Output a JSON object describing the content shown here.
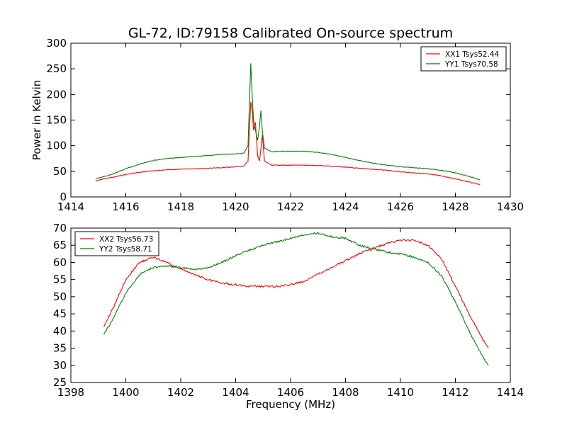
{
  "title": "GL-72, ID:79158 Calibrated On-source spectrum",
  "chart_data": [
    {
      "type": "line",
      "ylabel": "Power in Kelvin",
      "xlabel": "",
      "xlim": [
        1414,
        1430
      ],
      "ylim": [
        0,
        300
      ],
      "xticks": [
        1414,
        1416,
        1418,
        1420,
        1422,
        1424,
        1426,
        1428,
        1430
      ],
      "yticks": [
        0,
        50,
        100,
        150,
        200,
        250,
        300
      ],
      "legend_position": "upper right",
      "series": [
        {
          "name": "XX1 Tsys52.44",
          "color": "#ff0000",
          "x": [
            1414.9,
            1415.5,
            1416.0,
            1416.5,
            1417.0,
            1417.5,
            1418.0,
            1418.5,
            1419.0,
            1419.5,
            1420.0,
            1420.3,
            1420.45,
            1420.55,
            1420.6,
            1420.65,
            1420.72,
            1420.8,
            1420.87,
            1420.92,
            1420.97,
            1421.05,
            1421.3,
            1421.5,
            1422.0,
            1422.5,
            1423.0,
            1423.5,
            1424.0,
            1424.5,
            1425.0,
            1425.5,
            1426.0,
            1426.5,
            1427.0,
            1427.5,
            1428.0,
            1428.5,
            1428.9
          ],
          "y": [
            32,
            38,
            44,
            48,
            51,
            53,
            54,
            55,
            56,
            57,
            59,
            60,
            70,
            185,
            170,
            130,
            145,
            80,
            70,
            95,
            120,
            70,
            62,
            62,
            62,
            62,
            61,
            60,
            58,
            56,
            54,
            52,
            49,
            47,
            45,
            41,
            35,
            29,
            24
          ]
        },
        {
          "name": "YY1 Tsys70.58",
          "color": "#008000",
          "x": [
            1414.9,
            1415.5,
            1416.0,
            1416.5,
            1417.0,
            1417.5,
            1418.0,
            1418.5,
            1419.0,
            1419.5,
            1420.0,
            1420.3,
            1420.45,
            1420.5,
            1420.55,
            1420.6,
            1420.65,
            1420.72,
            1420.8,
            1420.87,
            1420.92,
            1420.97,
            1421.05,
            1421.3,
            1421.5,
            1422.0,
            1422.5,
            1423.0,
            1423.5,
            1424.0,
            1424.5,
            1425.0,
            1425.5,
            1426.0,
            1426.5,
            1427.0,
            1427.5,
            1428.0,
            1428.5,
            1428.9
          ],
          "y": [
            35,
            44,
            55,
            64,
            71,
            75,
            77,
            79,
            81,
            83,
            84,
            85,
            100,
            180,
            260,
            200,
            150,
            130,
            110,
            140,
            168,
            130,
            95,
            88,
            89,
            89,
            89,
            87,
            83,
            77,
            71,
            66,
            62,
            59,
            57,
            55,
            52,
            47,
            40,
            33
          ]
        }
      ]
    },
    {
      "type": "line",
      "ylabel": "",
      "xlabel": "Frequency (MHz)",
      "xlim": [
        1398,
        1414
      ],
      "ylim": [
        25,
        70
      ],
      "xticks": [
        1398,
        1400,
        1402,
        1404,
        1406,
        1408,
        1410,
        1412,
        1414
      ],
      "yticks": [
        25,
        30,
        35,
        40,
        45,
        50,
        55,
        60,
        65,
        70
      ],
      "legend_position": "upper left",
      "series": [
        {
          "name": "XX2 Tsys56.73",
          "color": "#ff0000",
          "x": [
            1399.2,
            1399.5,
            1400.0,
            1400.5,
            1401.0,
            1401.5,
            1402.0,
            1402.5,
            1403.0,
            1403.5,
            1404.0,
            1404.5,
            1405.0,
            1405.5,
            1406.0,
            1406.5,
            1407.0,
            1407.5,
            1408.0,
            1408.5,
            1409.0,
            1409.5,
            1410.0,
            1410.5,
            1411.0,
            1411.5,
            1412.0,
            1412.5,
            1413.0,
            1413.2
          ],
          "y": [
            41.5,
            46,
            55,
            60,
            61.5,
            60,
            58,
            56.5,
            55,
            54,
            53.5,
            53,
            53,
            53,
            53.5,
            54.5,
            56.5,
            58.5,
            60.5,
            62.5,
            64,
            65.5,
            66.5,
            66.5,
            65,
            61,
            53,
            45,
            37.5,
            35
          ]
        },
        {
          "name": "YY2 Tsys58.71",
          "color": "#008000",
          "x": [
            1399.2,
            1399.5,
            1400.0,
            1400.5,
            1401.0,
            1401.5,
            1402.0,
            1402.5,
            1403.0,
            1403.5,
            1404.0,
            1404.5,
            1405.0,
            1405.5,
            1406.0,
            1406.5,
            1407.0,
            1407.5,
            1408.0,
            1408.5,
            1409.0,
            1409.5,
            1410.0,
            1410.5,
            1411.0,
            1411.5,
            1412.0,
            1412.5,
            1413.0,
            1413.2
          ],
          "y": [
            39,
            43,
            51,
            56.5,
            58.5,
            59,
            58.5,
            58,
            58.5,
            60,
            62,
            63.5,
            65,
            66,
            67,
            68,
            68.5,
            67.5,
            67,
            65,
            64,
            63,
            62.5,
            61.5,
            60,
            56,
            48.5,
            40,
            32.5,
            30
          ]
        }
      ]
    }
  ]
}
